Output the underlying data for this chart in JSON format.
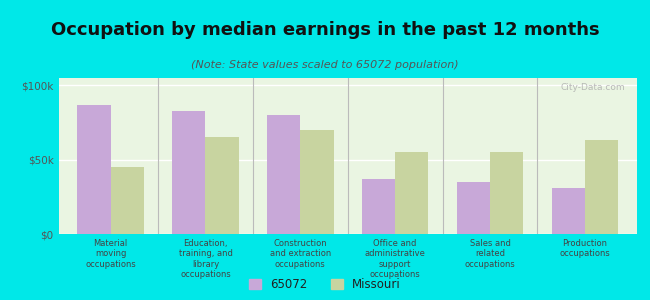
{
  "title": "Occupation by median earnings in the past 12 months",
  "subtitle": "(Note: State values scaled to 65072 population)",
  "categories": [
    "Material\nmoving\noccupations",
    "Education,\ntraining, and\nlibrary\noccupations",
    "Construction\nand extraction\noccupations",
    "Office and\nadministrative\nsupport\noccupations",
    "Sales and\nrelated\noccupations",
    "Production\noccupations"
  ],
  "values_65072": [
    87000,
    83000,
    80000,
    37000,
    35000,
    31000
  ],
  "values_missouri": [
    45000,
    65000,
    70000,
    55000,
    55000,
    63000
  ],
  "color_65072": "#c8a8d8",
  "color_missouri": "#c8d4a0",
  "background_chart": "#eaf5e2",
  "background_outer": "#00e8e8",
  "ylim": [
    0,
    105000
  ],
  "yticks": [
    0,
    50000,
    100000
  ],
  "ytick_labels": [
    "$0",
    "$50k",
    "$100k"
  ],
  "legend_label_65072": "65072",
  "legend_label_missouri": "Missouri",
  "watermark": "City-Data.com",
  "title_fontsize": 13,
  "subtitle_fontsize": 8
}
